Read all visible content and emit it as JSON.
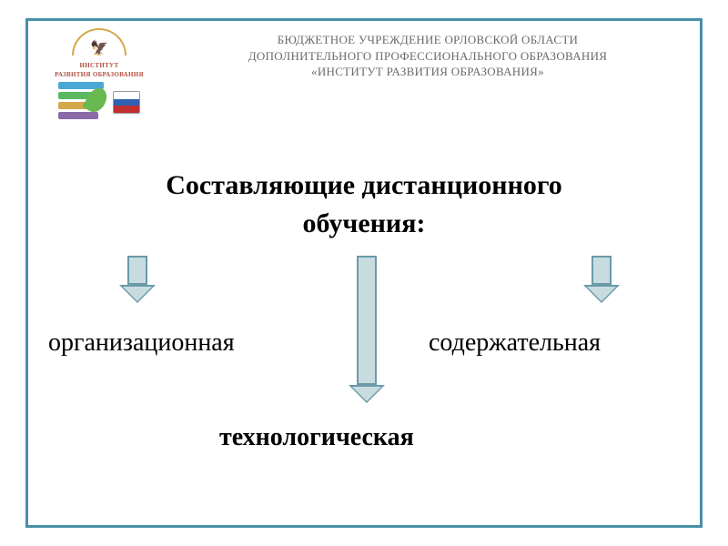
{
  "header": {
    "line1": "БЮДЖЕТНОЕ УЧРЕЖДЕНИЕ ОРЛОВСКОЙ ОБЛАСТИ",
    "line2": "ДОПОЛНИТЕЛЬНОГО ПРОФЕССИОНАЛЬНОГО ОБРАЗОВАНИЯ",
    "line3": "«ИНСТИТУТ РАЗВИТИЯ ОБРАЗОВАНИЯ»"
  },
  "logo": {
    "text_top": "ИНСТИТУТ",
    "text_bottom": "РАЗВИТИЯ ОБРАЗОВАНИЯ"
  },
  "title": {
    "line1": "Составляющие дистанционного",
    "line2": "обучения:"
  },
  "components": {
    "left": "организационная",
    "right": "содержательная",
    "bottom": "технологическая"
  },
  "colors": {
    "border": "#4a8fa8",
    "arrow_fill": "#c8dce0",
    "arrow_stroke": "#6a9aa8",
    "header_text": "#6a6a6a",
    "logo_text": "#b05040"
  },
  "diagram": {
    "type": "flowchart",
    "arrows": [
      {
        "position": "left",
        "length": "short"
      },
      {
        "position": "center",
        "length": "long"
      },
      {
        "position": "right",
        "length": "short"
      }
    ]
  }
}
